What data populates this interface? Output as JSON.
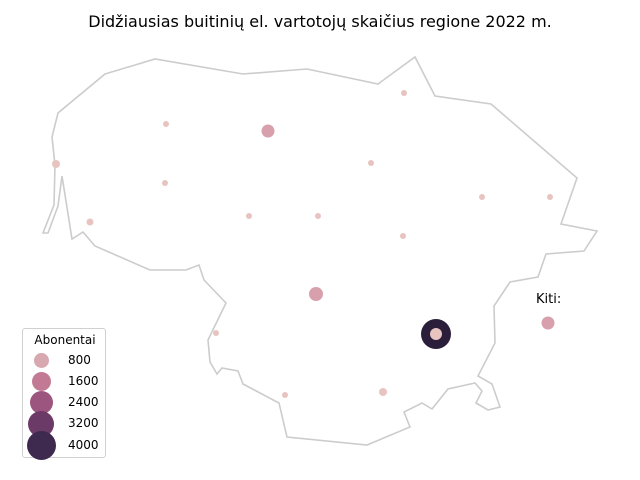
{
  "title": "Didžiausias buitinių el. vartotojų skaičius regione 2022 m.",
  "kiti_label": "Kiti:",
  "legend": {
    "title": "Abonentai",
    "items": [
      {
        "label": "800",
        "value": 800,
        "color": "#d8a8b0"
      },
      {
        "label": "1600",
        "value": 1600,
        "color": "#c27a94"
      },
      {
        "label": "2400",
        "value": 2400,
        "color": "#9c557e"
      },
      {
        "label": "3200",
        "value": 3200,
        "color": "#6c3a66"
      },
      {
        "label": "4000",
        "value": 4000,
        "color": "#3f2a4f"
      }
    ]
  },
  "colors": {
    "border": "#cccccc",
    "small_point": "#e8c4c0",
    "medium_point": "#d8a0ac",
    "large_point": "#2a1e3a"
  }
}
